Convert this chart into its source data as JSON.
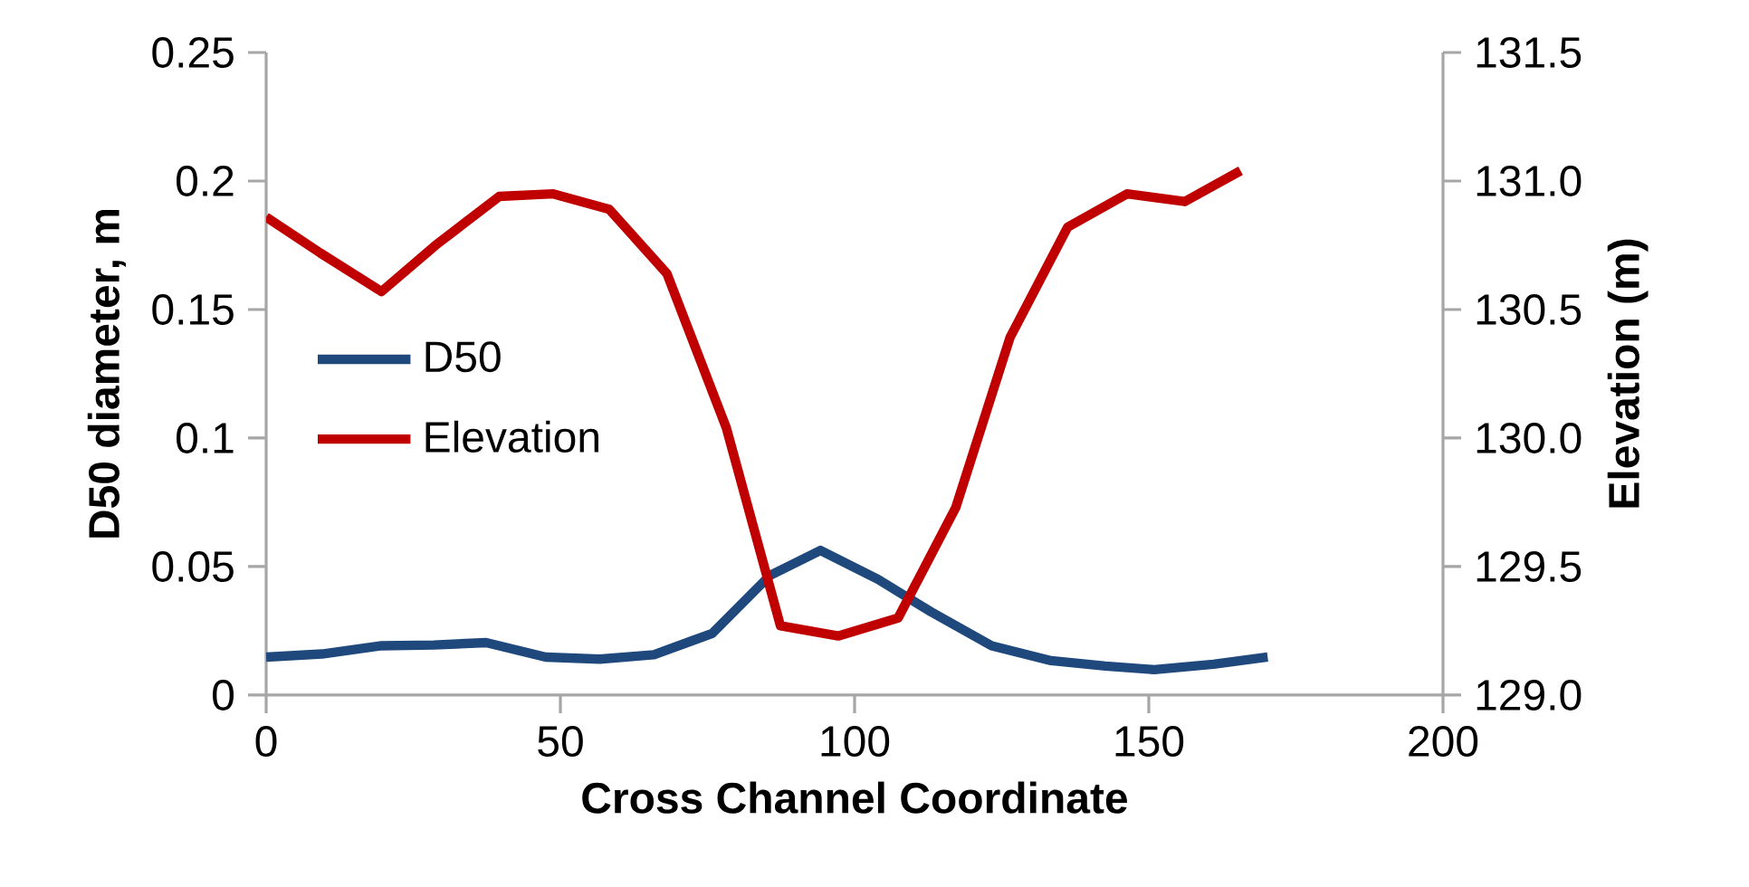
{
  "chart_data": {
    "type": "line",
    "xlabel": "Cross Channel Coordinate",
    "ylabel": "D50 diameter, m",
    "y2label": "Elevation (m)",
    "xlim": [
      0,
      200
    ],
    "xticks": [
      0,
      50,
      100,
      150,
      200
    ],
    "ylim": [
      0,
      0.25
    ],
    "yticks": [
      0,
      0.05,
      0.1,
      0.15,
      0.2,
      0.25
    ],
    "y2lim": [
      129,
      131.5
    ],
    "y2ticks": [
      {
        "value": 129,
        "label": "129.0"
      },
      129.5,
      {
        "value": 130,
        "label": "130.0"
      },
      130.5,
      {
        "value": 131,
        "label": "131.0"
      },
      131.5
    ],
    "legend": "left",
    "grid": false,
    "marker": "none",
    "line_style": "solid",
    "series": [
      {
        "name": "D50",
        "color": "#1f497d",
        "x": [
          0,
          9.5,
          19.6,
          28.5,
          37.4,
          47.5,
          56.7,
          65.9,
          75.8,
          85.6,
          94.2,
          104,
          113,
          123.3,
          133.4,
          142.6,
          150.9,
          161,
          170.2
        ],
        "values": [
          0.0148,
          0.016,
          0.0192,
          0.0195,
          0.0204,
          0.0148,
          0.014,
          0.0157,
          0.024,
          0.0465,
          0.0563,
          0.045,
          0.0324,
          0.0192,
          0.0134,
          0.0113,
          0.0099,
          0.012,
          0.0148
        ]
      },
      {
        "name": "Elevation",
        "color": "#c00000",
        "axis": "y2",
        "x": [
          0,
          9.2,
          19.6,
          28.8,
          39.6,
          48.8,
          58.3,
          68.1,
          78.2,
          87.4,
          97.2,
          107.4,
          117.2,
          126.4,
          136.2,
          146.3,
          156.1,
          165.6
        ],
        "values": [
          130.86,
          130.72,
          130.57,
          130.75,
          130.94,
          130.95,
          130.89,
          130.64,
          130.04,
          129.27,
          129.23,
          129.3,
          129.73,
          130.39,
          130.82,
          130.95,
          130.92,
          131.04
        ]
      }
    ]
  }
}
